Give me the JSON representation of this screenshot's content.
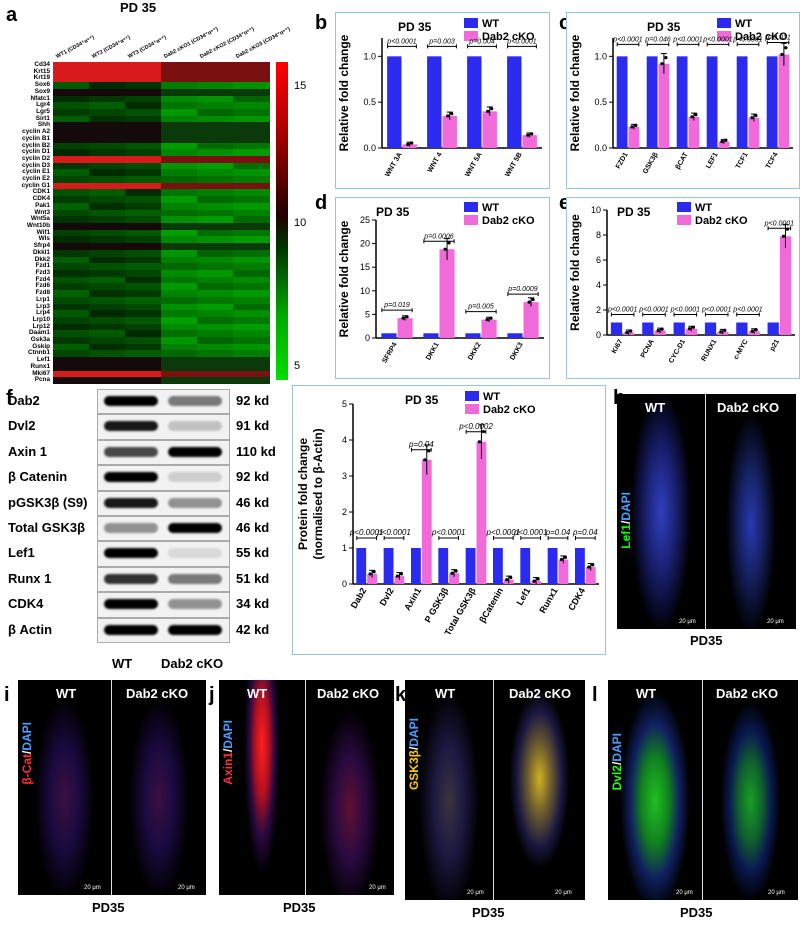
{
  "panel_labels": {
    "a": "a",
    "b": "b",
    "c": "c",
    "d": "d",
    "e": "e",
    "f": "f",
    "g": "g",
    "h": "h",
    "i": "i",
    "j": "j",
    "k": "k",
    "l": "l"
  },
  "heatmap": {
    "title": "PD 35",
    "columns": [
      "WT1 (CD34⁺α⁶⁺)",
      "WT2 (CD34⁺α⁶⁺)",
      "WT3 (CD34⁺α⁶⁺)",
      "Dab2 cKO1 (CD34⁺α⁶⁺)",
      "Dab2 cKO2 (CD34⁺α⁶⁺)",
      "Dab2 cKO3 (CD34⁺α⁶⁺)"
    ],
    "rows": [
      "Cd34",
      "Krt15",
      "Krt19",
      "Sox6",
      "Sox9",
      "Nfatc1",
      "Lgr4",
      "Lgr5",
      "Sirt1",
      "Shh",
      "cyclin A2",
      "cyclin B1",
      "cyclin B2",
      "cyclin D1",
      "cyclin D2",
      "cyclin D3",
      "cyclin E1",
      "cyclin E2",
      "cyclin G1",
      "CDK1",
      "CDK4",
      "Pak1",
      "Wnt3",
      "Wnt5a",
      "Wnt10b",
      "Wif1",
      "Wls",
      "Sfrp4",
      "Dkkl1",
      "Dkk2",
      "Fzd1",
      "Fzd3",
      "Fzd4",
      "Fzd6",
      "Fzd8",
      "Lrp1",
      "Lrp3",
      "Lrp4",
      "Lrp10",
      "Lrp12",
      "Daam1",
      "Gsk3a",
      "Gskip",
      "Ctnnb1",
      "Lef1",
      "Runx1",
      "Mki67",
      "Pcna"
    ],
    "colorbar_ticks": [
      "15",
      "10",
      "5"
    ],
    "colors": {
      "high": "#ff0000",
      "mid": "#000000",
      "low": "#00dd00"
    }
  },
  "bar_titles": {
    "b": "PD 35",
    "c": "PD 35",
    "d": "PD 35",
    "e": "PD 35",
    "g": "PD 35"
  },
  "legend": {
    "wt": "WT",
    "ko": "Dab2 cKO",
    "wt_color": "#2b2bf0",
    "ko_color": "#f06ad9"
  },
  "ylabels": {
    "b": "Relative fold change",
    "c": "Relative fold change",
    "d": "Relative fold change",
    "e": "Relative fold change",
    "g1": "Protein fold change",
    "g2": "(normalised to β-Actin)"
  },
  "chart_data": [
    {
      "id": "b",
      "type": "bar",
      "title": "PD 35",
      "ylabel": "Relative fold change",
      "ylim": [
        0,
        1.2
      ],
      "yticks": [
        "0.0",
        "0.5",
        "1.0"
      ],
      "categories": [
        "WNT 3A",
        "WNT 4",
        "WNT 5A",
        "WNT 5B"
      ],
      "pvalues": [
        "p<0.0001",
        "p=0.003",
        "p=0.004",
        "p<0.0001"
      ],
      "series": [
        {
          "name": "WT",
          "values": [
            1,
            1,
            1,
            1
          ]
        },
        {
          "name": "Dab2 cKO",
          "values": [
            0.04,
            0.35,
            0.4,
            0.14
          ]
        }
      ]
    },
    {
      "id": "c",
      "type": "bar",
      "title": "PD 35",
      "ylabel": "Relative fold change",
      "ylim": [
        0,
        1.2
      ],
      "yticks": [
        "0.0",
        "0.5",
        "1.0"
      ],
      "categories": [
        "FZD1",
        "GSK3β",
        "βCAT",
        "LEF1",
        "TCF1",
        "TCF4"
      ],
      "pvalues": [
        "p<0.0001",
        "p=0.046",
        "p<0.0001",
        "p<0.0001",
        "p<0.0001",
        "p=0.031"
      ],
      "series": [
        {
          "name": "WT",
          "values": [
            1,
            1,
            1,
            1,
            1,
            1
          ]
        },
        {
          "name": "Dab2 cKO",
          "values": [
            0.23,
            0.92,
            0.34,
            0.07,
            0.33,
            1.02
          ]
        }
      ]
    },
    {
      "id": "d",
      "type": "bar",
      "title": "PD 35",
      "ylabel": "Relative fold change",
      "ylim": [
        0,
        25
      ],
      "yticks": [
        "0",
        "5",
        "10",
        "15",
        "20",
        "25"
      ],
      "categories": [
        "SFRP4",
        "DKK1",
        "DKK2",
        "DKK3"
      ],
      "pvalues": [
        "p=0.019",
        "p=0.0006",
        "p=0.005",
        "p=0.0009"
      ],
      "series": [
        {
          "name": "WT",
          "values": [
            1,
            1,
            1,
            1
          ]
        },
        {
          "name": "Dab2 cKO",
          "values": [
            4.2,
            18.8,
            3.9,
            7.6
          ]
        }
      ]
    },
    {
      "id": "e",
      "type": "bar",
      "title": "PD 35",
      "ylabel": "Relative fold change",
      "ylim": [
        0,
        10
      ],
      "yticks": [
        "0",
        "2",
        "4",
        "6",
        "8",
        "10"
      ],
      "categories": [
        "Ki67",
        "PCNA",
        "CYC-D1",
        "RUNX1",
        "c-MYC",
        "p21"
      ],
      "pvalues": [
        "p<0.0001",
        "p<0.0001",
        "p<0.0001",
        "p<0.0001",
        "p<0.0001",
        "p<0.0001"
      ],
      "series": [
        {
          "name": "WT",
          "values": [
            1,
            1,
            1,
            1,
            1,
            1
          ]
        },
        {
          "name": "Dab2 cKO",
          "values": [
            0.2,
            0.35,
            0.5,
            0.25,
            0.3,
            7.9
          ]
        }
      ]
    },
    {
      "id": "g",
      "type": "bar",
      "title": "PD 35",
      "ylabel": "Protein fold change (normalised to β-Actin)",
      "ylim": [
        0,
        5
      ],
      "yticks": [
        "0",
        "1",
        "2",
        "3",
        "4",
        "5"
      ],
      "categories": [
        "Dab2",
        "Dvl2",
        "Axin1",
        "P GSK3β",
        "Total GSK3β",
        "βCatenin",
        "Lef1",
        "Runx1",
        "CDK4"
      ],
      "pvalues": [
        "p<0.0001",
        "p<0.0001",
        "p=0.04",
        "p<0.0001",
        "p<0.0002",
        "p<0.0001",
        "p<0.0001",
        "p=0.04",
        "p=0.04"
      ],
      "series": [
        {
          "name": "WT",
          "values": [
            1,
            1,
            1,
            1,
            1,
            1,
            1,
            1,
            1
          ]
        },
        {
          "name": "Dab2 cKO",
          "values": [
            0.28,
            0.22,
            3.45,
            0.3,
            3.95,
            0.12,
            0.08,
            0.68,
            0.47
          ]
        }
      ]
    }
  ],
  "western": {
    "rows": [
      {
        "label": "Dab2",
        "kd": "92 kd"
      },
      {
        "label": "Dvl2",
        "kd": "91 kd"
      },
      {
        "label": "Axin 1",
        "kd": "110 kd"
      },
      {
        "label": "β Catenin",
        "kd": "92 kd"
      },
      {
        "label": "pGSK3β (S9)",
        "kd": "46 kd"
      },
      {
        "label": "Total GSK3β",
        "kd": "46 kd"
      },
      {
        "label": "Lef1",
        "kd": "55 kd"
      },
      {
        "label": "Runx 1",
        "kd": "51 kd"
      },
      {
        "label": "CDK4",
        "kd": "34 kd"
      },
      {
        "label": "β Actin",
        "kd": "42 kd"
      }
    ],
    "wt": "WT",
    "ko": "Dab2 cKO"
  },
  "micrographs": {
    "h": {
      "wt": "WT",
      "ko": "Dab2 cKO",
      "stain_a": "Lef1",
      "stain_b": "DAPI",
      "scale": "20 μm",
      "caption": "PD35"
    },
    "i": {
      "wt": "WT",
      "ko": "Dab2 cKO",
      "stain_a": "β-Cat",
      "stain_b": "DAPI",
      "scale": "20 μm",
      "caption": "PD35"
    },
    "j": {
      "wt": "WT",
      "ko": "Dab2 cKO",
      "stain_a": "Axin1",
      "stain_b": "DAPI",
      "scale": "20 μm",
      "caption": "PD35"
    },
    "k": {
      "wt": "WT",
      "ko": "Dab2 cKO",
      "stain_a": "GSK3β",
      "stain_b": "DAPI",
      "scale": "20 μm",
      "caption": "PD35"
    },
    "l": {
      "wt": "WT",
      "ko": "Dab2 cKO",
      "stain_a": "Dvl2",
      "stain_b": "DAPI",
      "scale": "20 μm",
      "caption": "PD35"
    }
  }
}
